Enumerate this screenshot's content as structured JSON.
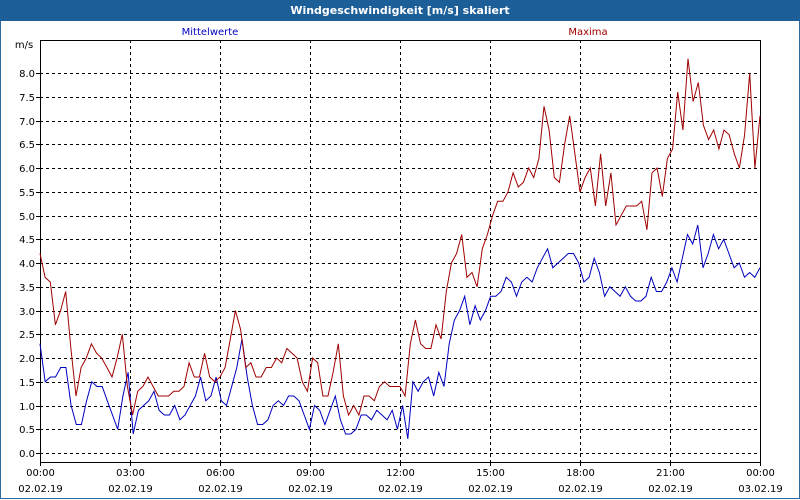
{
  "window": {
    "title": "Windgeschwindigkeit [m/s] skaliert"
  },
  "chart_data": {
    "type": "line",
    "ylabel": "m/s",
    "ylim": [
      0,
      8.5
    ],
    "yticks": [
      0.0,
      0.5,
      1.0,
      1.5,
      2.0,
      2.5,
      3.0,
      3.5,
      4.0,
      4.5,
      5.0,
      5.5,
      6.0,
      6.5,
      7.0,
      7.5,
      8.0
    ],
    "ytick_labels": [
      "0.0",
      "0.5",
      "1.0",
      "1.5",
      "2.0",
      "2.5",
      "3.0",
      "3.5",
      "4.0",
      "4.5",
      "5.0",
      "5.5",
      "6.0",
      "6.5",
      "7.0",
      "7.5",
      "8.0"
    ],
    "xlim": [
      0,
      24
    ],
    "xticks": [
      {
        "x": 0,
        "time": "00:00",
        "date": "02.02.19"
      },
      {
        "x": 3,
        "time": "03:00",
        "date": "02.02.19"
      },
      {
        "x": 6,
        "time": "06:00",
        "date": "02.02.19"
      },
      {
        "x": 9,
        "time": "09:00",
        "date": "02.02.19"
      },
      {
        "x": 12,
        "time": "12:00",
        "date": "02.02.19"
      },
      {
        "x": 15,
        "time": "15:00",
        "date": "02.02.19"
      },
      {
        "x": 18,
        "time": "18:00",
        "date": "02.02.19"
      },
      {
        "x": 21,
        "time": "21:00",
        "date": "02.02.19"
      },
      {
        "x": 24,
        "time": "00:00",
        "date": "03.02.19"
      }
    ],
    "grid": true,
    "series": [
      {
        "name": "Mittelwerte",
        "color": "#0000c0",
        "values": [
          2.3,
          1.5,
          1.6,
          1.6,
          1.8,
          1.8,
          1.0,
          0.6,
          0.6,
          1.1,
          1.5,
          1.4,
          1.4,
          1.1,
          0.8,
          0.5,
          1.2,
          1.7,
          0.4,
          0.9,
          1.0,
          1.1,
          1.3,
          0.9,
          0.8,
          0.8,
          1.0,
          0.7,
          0.8,
          1.0,
          1.2,
          1.6,
          1.1,
          1.2,
          1.6,
          1.1,
          1.0,
          1.4,
          1.8,
          2.4,
          1.6,
          1.0,
          0.6,
          0.6,
          0.7,
          1.0,
          1.1,
          1.0,
          1.2,
          1.2,
          1.1,
          0.8,
          0.5,
          1.0,
          0.9,
          0.6,
          0.9,
          1.2,
          0.7,
          0.4,
          0.4,
          0.5,
          0.8,
          0.8,
          0.7,
          0.9,
          0.8,
          0.7,
          0.9,
          0.5,
          1.0,
          0.3,
          1.5,
          1.3,
          1.5,
          1.6,
          1.2,
          1.7,
          1.4,
          2.3,
          2.8,
          3.0,
          3.3,
          2.7,
          3.1,
          2.8,
          3.0,
          3.3,
          3.3,
          3.4,
          3.7,
          3.6,
          3.3,
          3.6,
          3.7,
          3.6,
          3.9,
          4.1,
          4.3,
          3.9,
          4.0,
          4.1,
          4.2,
          4.2,
          4.0,
          3.6,
          3.7,
          4.1,
          3.8,
          3.3,
          3.5,
          3.4,
          3.3,
          3.5,
          3.3,
          3.2,
          3.2,
          3.3,
          3.7,
          3.4,
          3.4,
          3.6,
          3.9,
          3.6,
          4.1,
          4.6,
          4.4,
          4.8,
          3.9,
          4.2,
          4.6,
          4.3,
          4.5,
          4.2,
          3.9,
          4.0,
          3.7,
          3.8,
          3.7,
          3.9
        ]
      },
      {
        "name": "Maxima",
        "color": "#a00000",
        "values": [
          4.2,
          3.7,
          3.6,
          2.7,
          3.0,
          3.4,
          2.2,
          1.2,
          1.8,
          2.0,
          2.3,
          2.1,
          2.0,
          1.8,
          1.6,
          2.0,
          2.5,
          1.4,
          0.8,
          1.3,
          1.4,
          1.6,
          1.4,
          1.2,
          1.2,
          1.2,
          1.3,
          1.3,
          1.4,
          1.9,
          1.6,
          1.6,
          2.1,
          1.6,
          1.5,
          1.6,
          1.8,
          2.4,
          3.0,
          2.6,
          1.8,
          1.9,
          1.6,
          1.6,
          1.8,
          1.8,
          2.0,
          1.9,
          2.2,
          2.1,
          2.0,
          1.5,
          1.3,
          2.0,
          1.9,
          1.2,
          1.2,
          1.7,
          2.3,
          1.2,
          0.8,
          1.0,
          0.8,
          1.2,
          1.2,
          1.1,
          1.4,
          1.5,
          1.4,
          1.4,
          1.4,
          1.2,
          2.3,
          2.8,
          2.3,
          2.2,
          2.2,
          2.7,
          2.4,
          3.4,
          4.0,
          4.2,
          4.6,
          3.7,
          3.8,
          3.5,
          4.3,
          4.6,
          5.0,
          5.3,
          5.3,
          5.5,
          5.9,
          5.6,
          5.7,
          6.0,
          5.8,
          6.2,
          7.3,
          6.8,
          5.8,
          5.7,
          6.5,
          7.1,
          6.3,
          5.5,
          5.8,
          6.0,
          5.2,
          6.3,
          5.2,
          5.9,
          4.8,
          5.0,
          5.2,
          5.2,
          5.2,
          5.3,
          4.7,
          5.9,
          6.0,
          5.4,
          6.2,
          6.4,
          7.6,
          6.8,
          8.3,
          7.4,
          7.8,
          6.9,
          6.6,
          6.8,
          6.4,
          6.8,
          6.7,
          6.3,
          6.0,
          6.7,
          8.0,
          6.0,
          7.1
        ]
      }
    ]
  }
}
